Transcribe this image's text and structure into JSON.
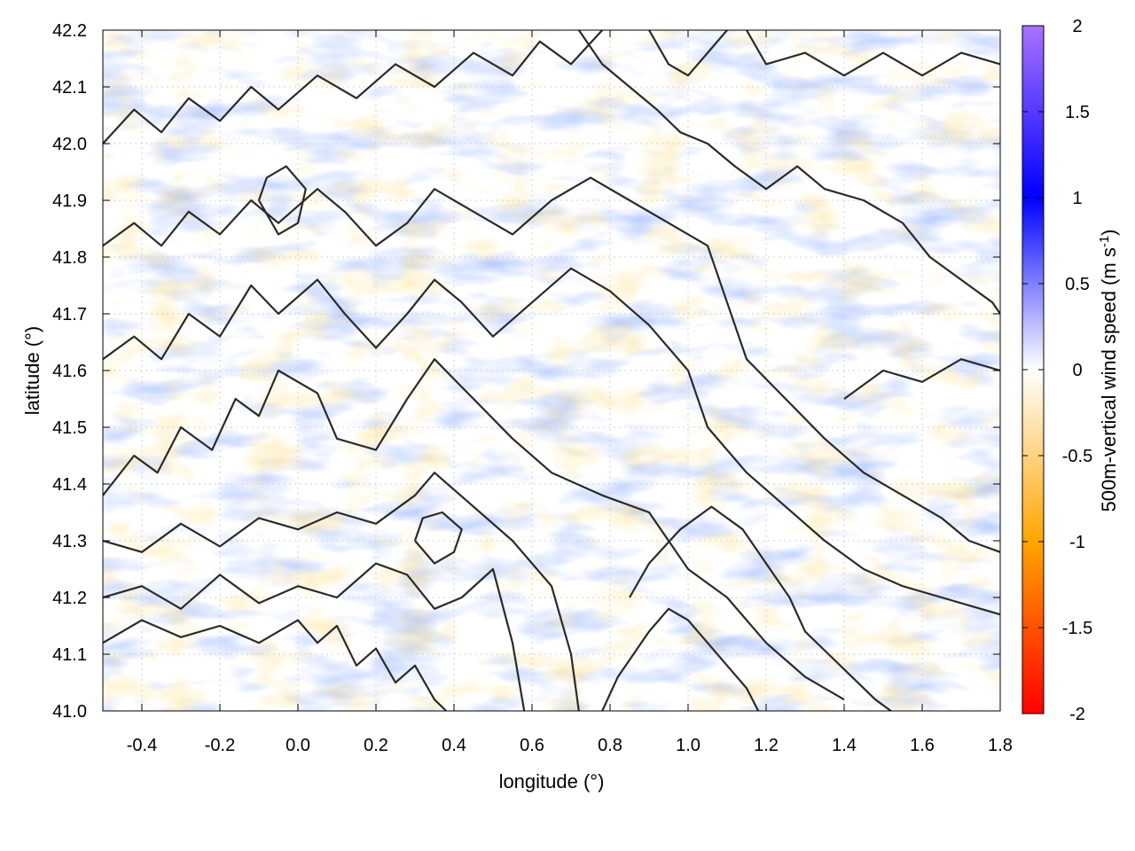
{
  "chart_data": {
    "type": "heatmap",
    "title": "",
    "xlabel": "longitude (°)",
    "ylabel": "latitude (°)",
    "xlim": [
      -0.5,
      1.8
    ],
    "ylim": [
      41.0,
      42.2
    ],
    "x_ticks": [
      {
        "value": -0.4,
        "label": "-0.4"
      },
      {
        "value": -0.2,
        "label": "-0.2"
      },
      {
        "value": 0.0,
        "label": "0.0"
      },
      {
        "value": 0.2,
        "label": "0.2"
      },
      {
        "value": 0.4,
        "label": "0.4"
      },
      {
        "value": 0.6,
        "label": "0.6"
      },
      {
        "value": 0.8,
        "label": "0.8"
      },
      {
        "value": 1.0,
        "label": "1.0"
      },
      {
        "value": 1.2,
        "label": "1.2"
      },
      {
        "value": 1.4,
        "label": "1.4"
      },
      {
        "value": 1.6,
        "label": "1.6"
      },
      {
        "value": 1.8,
        "label": "1.8"
      }
    ],
    "y_ticks": [
      {
        "value": 41.0,
        "label": "41.0"
      },
      {
        "value": 41.1,
        "label": "41.1"
      },
      {
        "value": 41.2,
        "label": "41.2"
      },
      {
        "value": 41.3,
        "label": "41.3"
      },
      {
        "value": 41.4,
        "label": "41.4"
      },
      {
        "value": 41.5,
        "label": "41.5"
      },
      {
        "value": 41.6,
        "label": "41.6"
      },
      {
        "value": 41.7,
        "label": "41.7"
      },
      {
        "value": 41.8,
        "label": "41.8"
      },
      {
        "value": 41.9,
        "label": "41.9"
      },
      {
        "value": 42.0,
        "label": "42.0"
      },
      {
        "value": 42.1,
        "label": "42.1"
      },
      {
        "value": 42.2,
        "label": "42.2"
      }
    ],
    "grid": true,
    "colorbar": {
      "label_main": "500m-vertical wind speed (m s",
      "label_sup": "-1",
      "label_end": ")",
      "range": [
        -2,
        2
      ],
      "ticks": [
        {
          "value": 2,
          "label": "2"
        },
        {
          "value": 1.5,
          "label": "1.5"
        },
        {
          "value": 1,
          "label": "1"
        },
        {
          "value": 0.5,
          "label": "0.5"
        },
        {
          "value": 0,
          "label": "0"
        },
        {
          "value": -0.5,
          "label": "-0.5"
        },
        {
          "value": -1,
          "label": "-1"
        },
        {
          "value": -1.5,
          "label": "-1.5"
        },
        {
          "value": -2,
          "label": "-2"
        }
      ],
      "stops": [
        {
          "value": -2,
          "color": "#ff0000"
        },
        {
          "value": -1,
          "color": "#ffa500"
        },
        {
          "value": 0,
          "color": "#ffffff"
        },
        {
          "value": 1,
          "color": "#0000ff"
        },
        {
          "value": 2,
          "color": "#a972ff"
        }
      ]
    },
    "contours": [
      [
        [
          -0.5,
          41.12
        ],
        [
          -0.4,
          41.16
        ],
        [
          -0.3,
          41.13
        ],
        [
          -0.2,
          41.15
        ],
        [
          -0.1,
          41.12
        ],
        [
          0.0,
          41.16
        ],
        [
          0.05,
          41.12
        ],
        [
          0.1,
          41.15
        ],
        [
          0.15,
          41.08
        ],
        [
          0.2,
          41.11
        ],
        [
          0.25,
          41.05
        ],
        [
          0.3,
          41.08
        ],
        [
          0.35,
          41.02
        ],
        [
          0.38,
          41.0
        ]
      ],
      [
        [
          -0.5,
          41.2
        ],
        [
          -0.4,
          41.22
        ],
        [
          -0.3,
          41.18
        ],
        [
          -0.2,
          41.24
        ],
        [
          -0.1,
          41.19
        ],
        [
          0.0,
          41.22
        ],
        [
          0.1,
          41.2
        ],
        [
          0.2,
          41.26
        ],
        [
          0.28,
          41.24
        ],
        [
          0.35,
          41.18
        ],
        [
          0.42,
          41.2
        ],
        [
          0.5,
          41.25
        ],
        [
          0.55,
          41.12
        ],
        [
          0.58,
          41.0
        ]
      ],
      [
        [
          -0.5,
          41.3
        ],
        [
          -0.4,
          41.28
        ],
        [
          -0.3,
          41.33
        ],
        [
          -0.2,
          41.29
        ],
        [
          -0.1,
          41.34
        ],
        [
          0.0,
          41.32
        ],
        [
          0.1,
          41.35
        ],
        [
          0.2,
          41.33
        ],
        [
          0.3,
          41.38
        ],
        [
          0.35,
          41.42
        ],
        [
          0.45,
          41.36
        ],
        [
          0.55,
          41.3
        ],
        [
          0.65,
          41.22
        ],
        [
          0.7,
          41.1
        ],
        [
          0.72,
          41.0
        ]
      ],
      [
        [
          -0.5,
          41.38
        ],
        [
          -0.42,
          41.45
        ],
        [
          -0.36,
          41.42
        ],
        [
          -0.3,
          41.5
        ],
        [
          -0.22,
          41.46
        ],
        [
          -0.16,
          41.55
        ],
        [
          -0.1,
          41.52
        ],
        [
          -0.05,
          41.6
        ],
        [
          0.05,
          41.56
        ],
        [
          0.1,
          41.48
        ],
        [
          0.2,
          41.46
        ],
        [
          0.28,
          41.55
        ],
        [
          0.35,
          41.62
        ],
        [
          0.45,
          41.55
        ],
        [
          0.55,
          41.48
        ],
        [
          0.65,
          41.42
        ],
        [
          0.78,
          41.38
        ],
        [
          0.9,
          41.35
        ],
        [
          1.0,
          41.25
        ],
        [
          1.1,
          41.2
        ],
        [
          1.2,
          41.12
        ],
        [
          1.3,
          41.06
        ],
        [
          1.4,
          41.02
        ]
      ],
      [
        [
          -0.5,
          41.62
        ],
        [
          -0.42,
          41.66
        ],
        [
          -0.35,
          41.62
        ],
        [
          -0.28,
          41.7
        ],
        [
          -0.2,
          41.66
        ],
        [
          -0.12,
          41.75
        ],
        [
          -0.05,
          41.7
        ],
        [
          0.05,
          41.76
        ],
        [
          0.12,
          41.7
        ],
        [
          0.2,
          41.64
        ],
        [
          0.28,
          41.7
        ],
        [
          0.35,
          41.76
        ],
        [
          0.42,
          41.72
        ],
        [
          0.5,
          41.66
        ],
        [
          0.6,
          41.72
        ],
        [
          0.7,
          41.78
        ],
        [
          0.8,
          41.74
        ],
        [
          0.9,
          41.68
        ],
        [
          1.0,
          41.6
        ],
        [
          1.05,
          41.5
        ],
        [
          1.15,
          41.42
        ],
        [
          1.25,
          41.36
        ],
        [
          1.35,
          41.3
        ],
        [
          1.45,
          41.25
        ],
        [
          1.55,
          41.22
        ],
        [
          1.65,
          41.2
        ],
        [
          1.75,
          41.18
        ],
        [
          1.8,
          41.17
        ]
      ],
      [
        [
          -0.5,
          41.82
        ],
        [
          -0.42,
          41.86
        ],
        [
          -0.35,
          41.82
        ],
        [
          -0.28,
          41.88
        ],
        [
          -0.2,
          41.84
        ],
        [
          -0.12,
          41.9
        ],
        [
          -0.05,
          41.86
        ],
        [
          0.05,
          41.92
        ],
        [
          0.12,
          41.88
        ],
        [
          0.2,
          41.82
        ],
        [
          0.28,
          41.86
        ],
        [
          0.35,
          41.92
        ],
        [
          0.45,
          41.88
        ],
        [
          0.55,
          41.84
        ],
        [
          0.65,
          41.9
        ],
        [
          0.75,
          41.94
        ],
        [
          0.85,
          41.9
        ],
        [
          0.95,
          41.86
        ],
        [
          1.05,
          41.82
        ],
        [
          1.1,
          41.72
        ],
        [
          1.15,
          41.62
        ],
        [
          1.25,
          41.55
        ],
        [
          1.35,
          41.48
        ],
        [
          1.45,
          41.42
        ],
        [
          1.55,
          41.38
        ],
        [
          1.65,
          41.34
        ],
        [
          1.72,
          41.3
        ],
        [
          1.8,
          41.28
        ]
      ],
      [
        [
          -0.5,
          42.0
        ],
        [
          -0.42,
          42.06
        ],
        [
          -0.35,
          42.02
        ],
        [
          -0.28,
          42.08
        ],
        [
          -0.2,
          42.04
        ],
        [
          -0.12,
          42.1
        ],
        [
          -0.05,
          42.06
        ],
        [
          0.05,
          42.12
        ],
        [
          0.15,
          42.08
        ],
        [
          0.25,
          42.14
        ],
        [
          0.35,
          42.1
        ],
        [
          0.45,
          42.16
        ],
        [
          0.55,
          42.12
        ],
        [
          0.62,
          42.18
        ],
        [
          0.7,
          42.14
        ],
        [
          0.78,
          42.2
        ]
      ],
      [
        [
          0.72,
          42.2
        ],
        [
          0.78,
          42.14
        ],
        [
          0.85,
          42.1
        ],
        [
          0.92,
          42.06
        ],
        [
          0.98,
          42.02
        ],
        [
          1.05,
          42.0
        ],
        [
          1.12,
          41.96
        ],
        [
          1.2,
          41.92
        ],
        [
          1.28,
          41.96
        ],
        [
          1.35,
          41.92
        ],
        [
          1.45,
          41.9
        ],
        [
          1.55,
          41.86
        ],
        [
          1.62,
          41.8
        ],
        [
          1.7,
          41.76
        ],
        [
          1.78,
          41.72
        ],
        [
          1.8,
          41.7
        ]
      ],
      [
        [
          0.9,
          42.2
        ],
        [
          0.95,
          42.14
        ],
        [
          1.0,
          42.12
        ],
        [
          1.05,
          42.16
        ],
        [
          1.1,
          42.2
        ]
      ],
      [
        [
          1.15,
          42.2
        ],
        [
          1.2,
          42.14
        ],
        [
          1.3,
          42.16
        ],
        [
          1.4,
          42.12
        ],
        [
          1.5,
          42.16
        ],
        [
          1.6,
          42.12
        ],
        [
          1.7,
          42.16
        ],
        [
          1.8,
          42.14
        ]
      ],
      [
        [
          0.85,
          41.2
        ],
        [
          0.9,
          41.26
        ],
        [
          0.98,
          41.32
        ],
        [
          1.06,
          41.36
        ],
        [
          1.14,
          41.32
        ],
        [
          1.2,
          41.26
        ],
        [
          1.26,
          41.2
        ],
        [
          1.3,
          41.14
        ],
        [
          1.36,
          41.1
        ],
        [
          1.42,
          41.06
        ],
        [
          1.48,
          41.02
        ],
        [
          1.52,
          41.0
        ]
      ],
      [
        [
          0.78,
          41.0
        ],
        [
          0.82,
          41.06
        ],
        [
          0.86,
          41.1
        ],
        [
          0.9,
          41.14
        ],
        [
          0.95,
          41.18
        ],
        [
          1.0,
          41.16
        ],
        [
          1.05,
          41.12
        ],
        [
          1.1,
          41.08
        ],
        [
          1.15,
          41.04
        ],
        [
          1.18,
          41.0
        ]
      ],
      [
        [
          1.4,
          41.55
        ],
        [
          1.5,
          41.6
        ],
        [
          1.6,
          41.58
        ],
        [
          1.7,
          41.62
        ],
        [
          1.8,
          41.6
        ]
      ],
      [
        [
          -0.1,
          41.9
        ],
        [
          -0.05,
          41.84
        ],
        [
          0.0,
          41.86
        ],
        [
          0.02,
          41.92
        ],
        [
          -0.03,
          41.96
        ],
        [
          -0.08,
          41.94
        ],
        [
          -0.1,
          41.9
        ]
      ],
      [
        [
          0.3,
          41.3
        ],
        [
          0.35,
          41.26
        ],
        [
          0.4,
          41.28
        ],
        [
          0.42,
          41.32
        ],
        [
          0.37,
          41.35
        ],
        [
          0.32,
          41.34
        ],
        [
          0.3,
          41.3
        ]
      ]
    ]
  }
}
